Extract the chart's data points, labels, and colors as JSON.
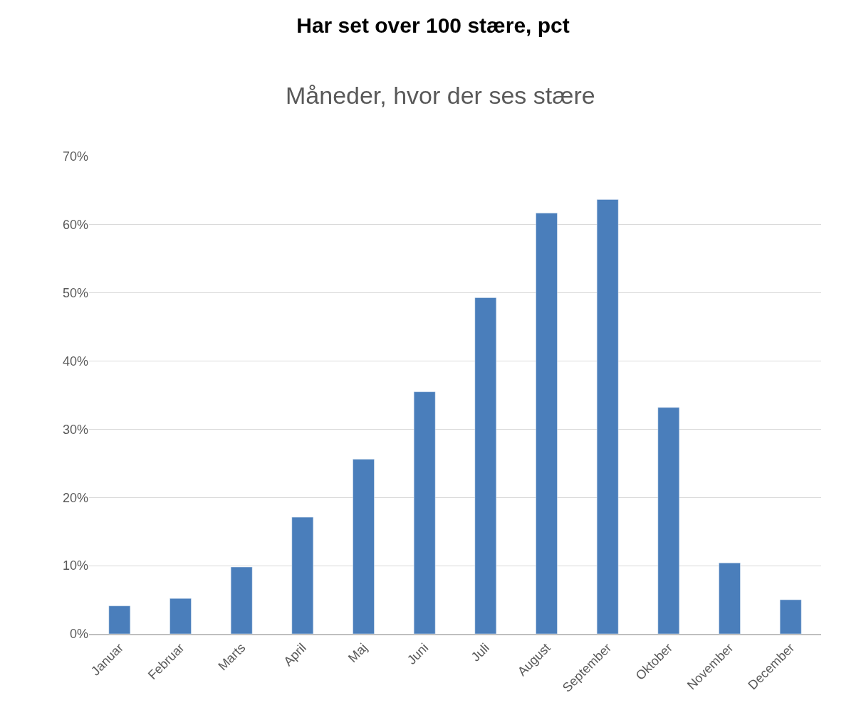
{
  "chart_data": {
    "type": "bar",
    "title": "Har set over 100 stære, pct",
    "subtitle": "Måneder, hvor der ses stære",
    "categories": [
      "Januar",
      "Februar",
      "Marts",
      "April",
      "Maj",
      "Juni",
      "Juli",
      "August",
      "September",
      "Oktober",
      "November",
      "December"
    ],
    "values": [
      4.1,
      5.2,
      9.8,
      17.1,
      25.6,
      35.5,
      49.3,
      61.7,
      63.7,
      33.2,
      10.4,
      5.0
    ],
    "color": "#4a7ebb",
    "ylim": [
      0,
      70
    ],
    "yticks": [
      {
        "value": 0,
        "label": "0%"
      },
      {
        "value": 10,
        "label": "10%"
      },
      {
        "value": 20,
        "label": "20%"
      },
      {
        "value": 30,
        "label": "30%"
      },
      {
        "value": 40,
        "label": "40%"
      },
      {
        "value": 50,
        "label": "50%"
      },
      {
        "value": 60,
        "label": "60%"
      },
      {
        "value": 70,
        "label": "70%"
      }
    ],
    "grid": "y"
  }
}
